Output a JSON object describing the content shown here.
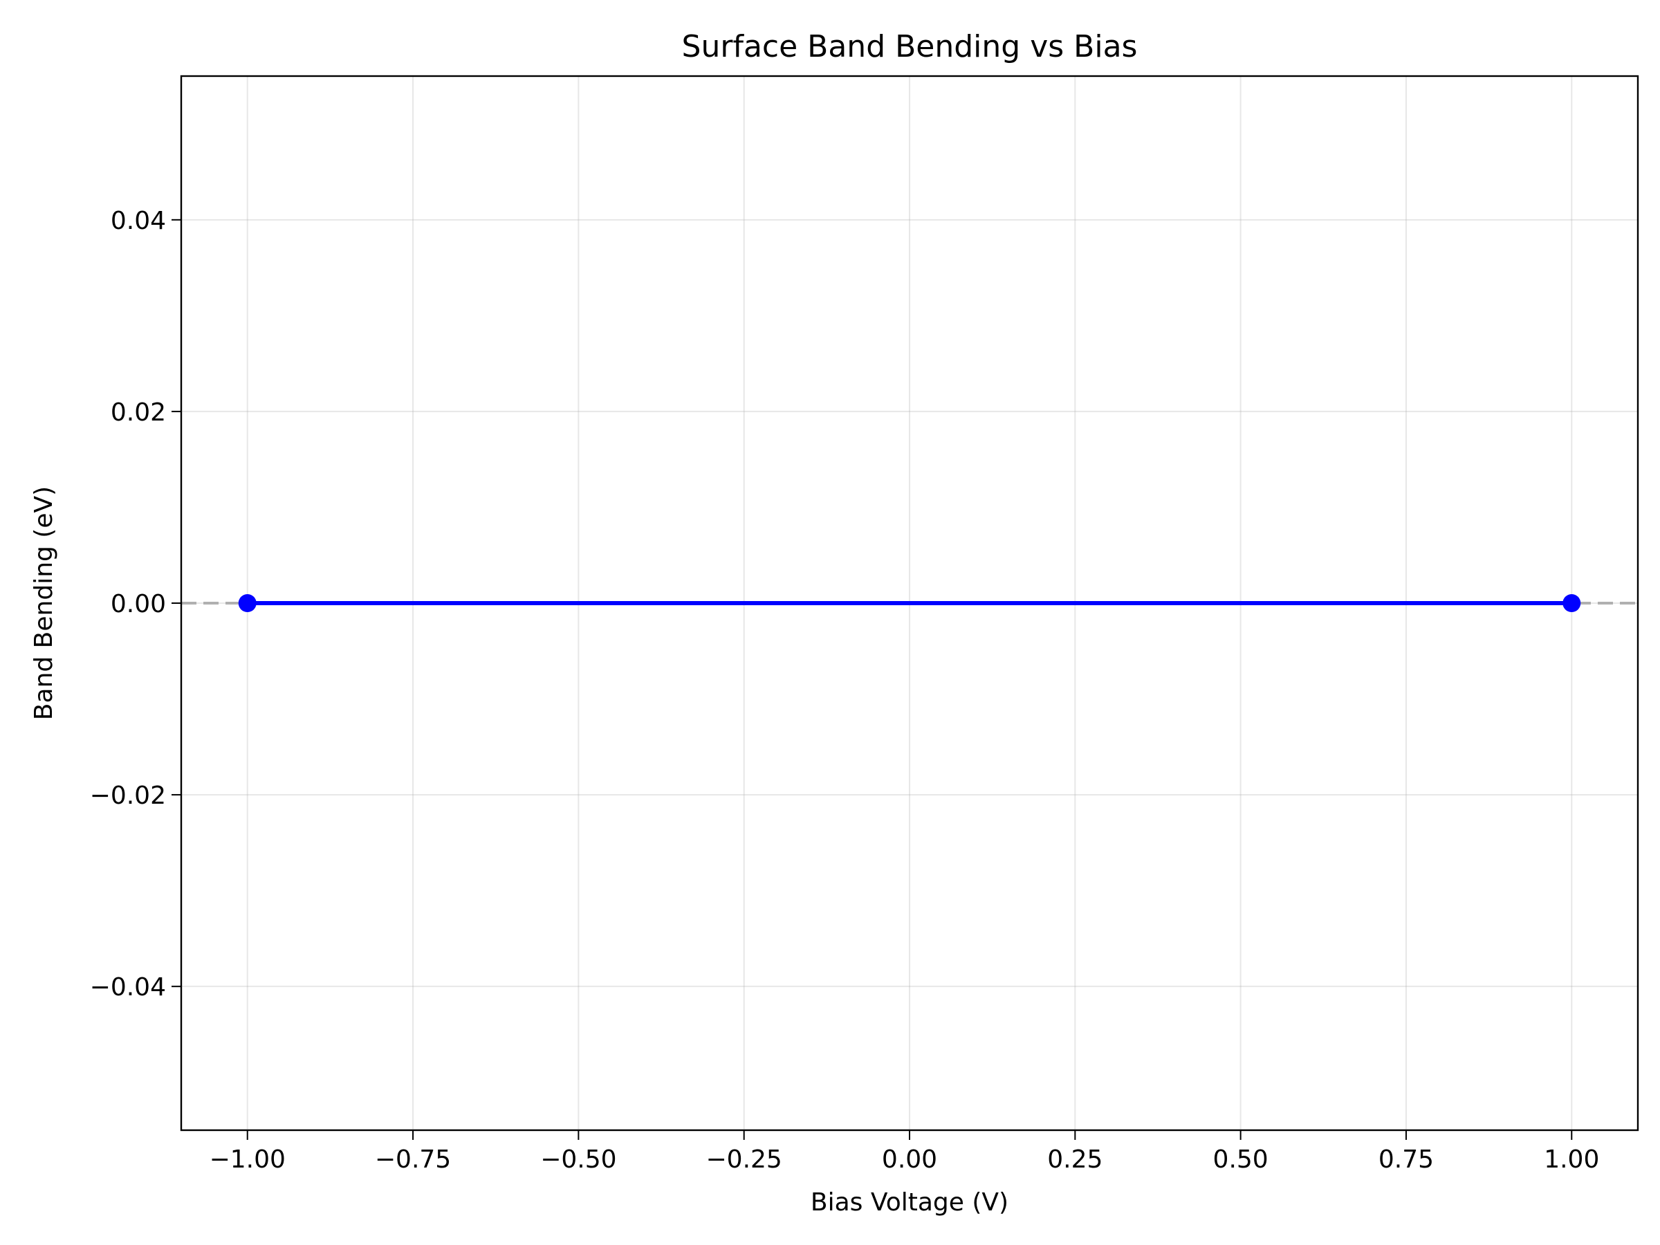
{
  "chart_data": {
    "type": "line",
    "title": "Surface Band Bending vs Bias",
    "xlabel": "Bias Voltage (V)",
    "ylabel": "Band Bending (eV)",
    "xlim": [
      -1.1,
      1.1
    ],
    "ylim": [
      -0.055,
      0.055
    ],
    "xticks": [
      -1.0,
      -0.75,
      -0.5,
      -0.25,
      0.0,
      0.25,
      0.5,
      0.75,
      1.0
    ],
    "xtick_labels": [
      "−1.00",
      "−0.75",
      "−0.50",
      "−0.25",
      "0.00",
      "0.25",
      "0.50",
      "0.75",
      "1.00"
    ],
    "yticks": [
      -0.04,
      -0.02,
      0.0,
      0.02,
      0.04
    ],
    "ytick_labels": [
      "−0.04",
      "−0.02",
      "0.00",
      "0.02",
      "0.04"
    ],
    "grid": true,
    "reference_line": {
      "y": 0.0,
      "style": "dashed",
      "color": "#b0b0b0"
    },
    "series": [
      {
        "x": [
          -1.0,
          1.0
        ],
        "y": [
          0.0,
          0.0
        ],
        "color": "#0000ff",
        "marker": "circle"
      }
    ]
  }
}
